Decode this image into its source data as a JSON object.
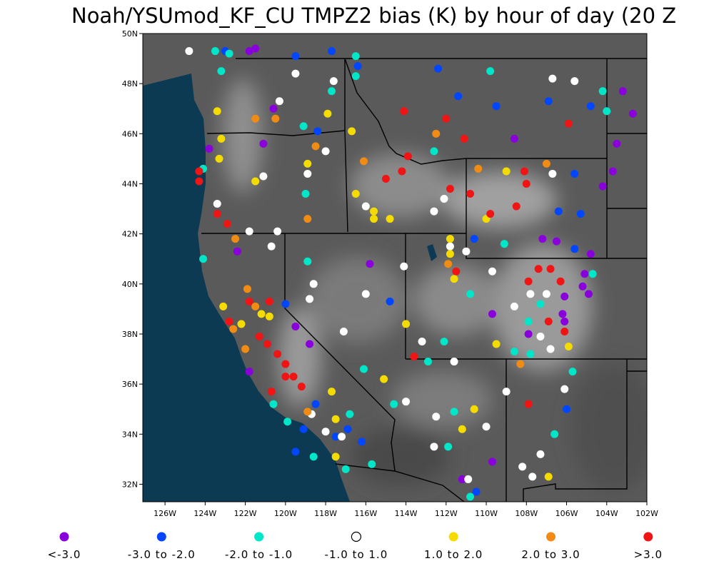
{
  "chart_data": {
    "type": "map",
    "title": "Noah/YSUmod_KF_CU TMPZ2 bias (K) by hour of day (20 Z",
    "xlim": [
      -127,
      -102
    ],
    "ylim": [
      31.3,
      50
    ],
    "xticks": [
      {
        "value": -126,
        "label": "126W"
      },
      {
        "value": -124,
        "label": "124W"
      },
      {
        "value": -122,
        "label": "122W"
      },
      {
        "value": -120,
        "label": "120W"
      },
      {
        "value": -118,
        "label": "118W"
      },
      {
        "value": -116,
        "label": "116W"
      },
      {
        "value": -114,
        "label": "114W"
      },
      {
        "value": -112,
        "label": "112W"
      },
      {
        "value": -110,
        "label": "110W"
      },
      {
        "value": -108,
        "label": "108W"
      },
      {
        "value": -106,
        "label": "106W"
      },
      {
        "value": -104,
        "label": "104W"
      },
      {
        "value": -102,
        "label": "102W"
      }
    ],
    "yticks": [
      {
        "value": 32,
        "label": "32N"
      },
      {
        "value": 34,
        "label": "34N"
      },
      {
        "value": 36,
        "label": "36N"
      },
      {
        "value": 38,
        "label": "38N"
      },
      {
        "value": 40,
        "label": "40N"
      },
      {
        "value": 42,
        "label": "42N"
      },
      {
        "value": 44,
        "label": "44N"
      },
      {
        "value": 46,
        "label": "46N"
      },
      {
        "value": 48,
        "label": "48N"
      },
      {
        "value": 50,
        "label": "50N"
      }
    ],
    "series": [
      {
        "name": "<-3.0",
        "color": "#8a00dc",
        "lon": [
          -121.8,
          -121.5,
          -120.6,
          -123.8,
          -121.1,
          -122.4,
          -115.8,
          -108.6,
          -103.2,
          -102.7,
          -103.5,
          -103.7,
          -104.2,
          -107.2,
          -106.5,
          -104.8,
          -105.1,
          -105.2,
          -104.9,
          -106.1,
          -106.2,
          -106.1,
          -109.7,
          -107.9,
          -119.5,
          -118.8,
          -109.7,
          -111.2,
          -121.8
        ],
        "lat": [
          49.3,
          49.4,
          47.0,
          45.4,
          45.6,
          41.3,
          40.8,
          45.8,
          47.7,
          46.8,
          45.6,
          44.5,
          43.9,
          41.8,
          41.7,
          41.2,
          40.4,
          39.9,
          39.6,
          39.5,
          38.8,
          38.5,
          38.8,
          38.0,
          38.3,
          37.6,
          32.9,
          32.2,
          36.5
        ]
      },
      {
        "name": "-3.0 to -2.0",
        "color": "#0046ff",
        "lon": [
          -123.0,
          -119.5,
          -117.7,
          -116.4,
          -112.4,
          -111.4,
          -109.5,
          -106.9,
          -104.8,
          -118.4,
          -105.6,
          -106.4,
          -105.3,
          -105.6,
          -110.6,
          -114.8,
          -106.0,
          -120.0,
          -118.5,
          -116.9,
          -116.2,
          -117.5,
          -119.1,
          -119.5,
          -110.5
        ],
        "lat": [
          49.3,
          49.1,
          49.3,
          48.7,
          48.6,
          47.5,
          47.1,
          47.3,
          47.1,
          46.1,
          44.4,
          42.9,
          42.8,
          41.4,
          41.8,
          39.3,
          35.0,
          39.2,
          35.2,
          34.2,
          33.7,
          33.9,
          34.2,
          33.3,
          31.7
        ]
      },
      {
        "name": "-2.0 to -1.0",
        "color": "#00e6c8",
        "lon": [
          -123.5,
          -122.8,
          -123.2,
          -116.5,
          -116.5,
          -117.7,
          -119.1,
          -112.6,
          -109.8,
          -104.2,
          -104.0,
          -119.0,
          -124.1,
          -124.1,
          -118.9,
          -110.8,
          -109.1,
          -107.9,
          -107.3,
          -104.7,
          -108.6,
          -107.8,
          -105.7,
          -106.6,
          -112.1,
          -112.9,
          -111.6,
          -116.1,
          -116.8,
          -114.6,
          -115.7,
          -117.0,
          -120.6,
          -119.9,
          -118.6,
          -111.9,
          -110.8
        ],
        "lat": [
          49.3,
          49.2,
          48.5,
          49.1,
          48.3,
          47.7,
          46.3,
          45.3,
          48.5,
          47.7,
          46.9,
          43.6,
          44.6,
          41.0,
          40.9,
          39.6,
          41.6,
          38.5,
          39.2,
          40.4,
          37.3,
          37.2,
          36.5,
          34.0,
          37.7,
          36.9,
          34.9,
          36.6,
          34.8,
          35.2,
          32.8,
          32.6,
          35.2,
          34.5,
          33.1,
          33.5,
          31.5
        ]
      },
      {
        "name": "-1.0 to 1.0",
        "color": "#ffffff",
        "lon": [
          -124.8,
          -119.5,
          -117.6,
          -120.3,
          -118.0,
          -118.9,
          -121.1,
          -116.0,
          -112.1,
          -112.6,
          -106.7,
          -105.6,
          -106.7,
          -121.8,
          -120.4,
          -123.4,
          -120.7,
          -118.6,
          -118.8,
          -116.0,
          -114.1,
          -111.8,
          -111.0,
          -109.7,
          -107.8,
          -108.6,
          -107.0,
          -107.3,
          -106.8,
          -111.6,
          -113.2,
          -117.1,
          -114.0,
          -112.5,
          -109.0,
          -110.0,
          -106.1,
          -108.2,
          -107.7,
          -107.3,
          -118.7,
          -118.0,
          -117.2,
          -112.6,
          -110.9
        ],
        "lat": [
          49.3,
          48.4,
          48.1,
          47.3,
          45.3,
          44.4,
          44.3,
          43.1,
          43.4,
          42.9,
          48.2,
          48.1,
          44.4,
          42.1,
          42.1,
          43.2,
          41.5,
          40.0,
          39.4,
          39.6,
          40.7,
          41.5,
          41.3,
          40.5,
          39.6,
          39.1,
          39.6,
          37.9,
          37.4,
          36.9,
          37.7,
          38.1,
          35.3,
          34.7,
          35.7,
          34.3,
          35.8,
          32.7,
          32.3,
          33.2,
          34.8,
          34.1,
          33.9,
          33.5,
          32.2
        ]
      },
      {
        "name": "1.0 to 2.0",
        "color": "#f5dc00",
        "lon": [
          -123.4,
          -123.2,
          -123.3,
          -121.5,
          -118.9,
          -117.9,
          -116.7,
          -115.6,
          -115.6,
          -114.8,
          -116.5,
          -109.0,
          -110.0,
          -111.8,
          -111.8,
          -111.6,
          -121.2,
          -120.8,
          -122.2,
          -123.1,
          -114.0,
          -109.5,
          -105.9,
          -110.6,
          -111.2,
          -106.9,
          -117.5,
          -117.7,
          -115.1,
          -117.5
        ],
        "lat": [
          46.9,
          45.8,
          45.0,
          44.1,
          44.8,
          46.8,
          46.1,
          42.9,
          42.6,
          42.6,
          43.6,
          44.5,
          42.6,
          41.8,
          41.2,
          40.2,
          38.8,
          38.7,
          38.4,
          39.1,
          38.4,
          37.6,
          37.5,
          35.0,
          34.2,
          32.3,
          33.1,
          35.7,
          36.2,
          34.6
        ]
      },
      {
        "name": "2.0 to 3.0",
        "color": "#f08c14",
        "lon": [
          -120.5,
          -121.5,
          -118.5,
          -112.5,
          -110.4,
          -107.0,
          -118.9,
          -116.1,
          -122.5,
          -121.9,
          -121.5,
          -122.0,
          -122.6,
          -111.9,
          -108.3,
          -118.9
        ],
        "lat": [
          46.6,
          46.6,
          45.5,
          46.0,
          44.6,
          44.8,
          42.6,
          44.9,
          41.8,
          39.8,
          39.1,
          37.4,
          38.2,
          40.8,
          36.8,
          34.9
        ]
      },
      {
        "name": ">3.0",
        "color": "#f01414",
        "lon": [
          -114.1,
          -112.0,
          -111.1,
          -113.9,
          -114.2,
          -115.0,
          -111.8,
          -110.8,
          -108.1,
          -108.0,
          -109.8,
          -108.5,
          -105.9,
          -124.3,
          -124.3,
          -123.4,
          -122.9,
          -111.5,
          -107.4,
          -106.8,
          -107.9,
          -106.3,
          -121.8,
          -120.8,
          -121.3,
          -120.9,
          -120.4,
          -120.0,
          -119.6,
          -119.2,
          -120.7,
          -120.0,
          -106.9,
          -106.1,
          -107.9,
          -113.6,
          -122.8
        ],
        "lat": [
          46.9,
          46.6,
          45.8,
          45.1,
          44.5,
          44.2,
          43.8,
          43.6,
          44.5,
          44.0,
          42.8,
          43.1,
          46.4,
          44.5,
          44.1,
          42.8,
          42.4,
          40.5,
          40.6,
          40.6,
          40.1,
          40.1,
          39.3,
          39.3,
          37.9,
          37.6,
          37.2,
          36.8,
          36.3,
          35.9,
          35.7,
          36.3,
          38.5,
          38.1,
          35.2,
          37.1,
          38.5
        ]
      }
    ]
  }
}
